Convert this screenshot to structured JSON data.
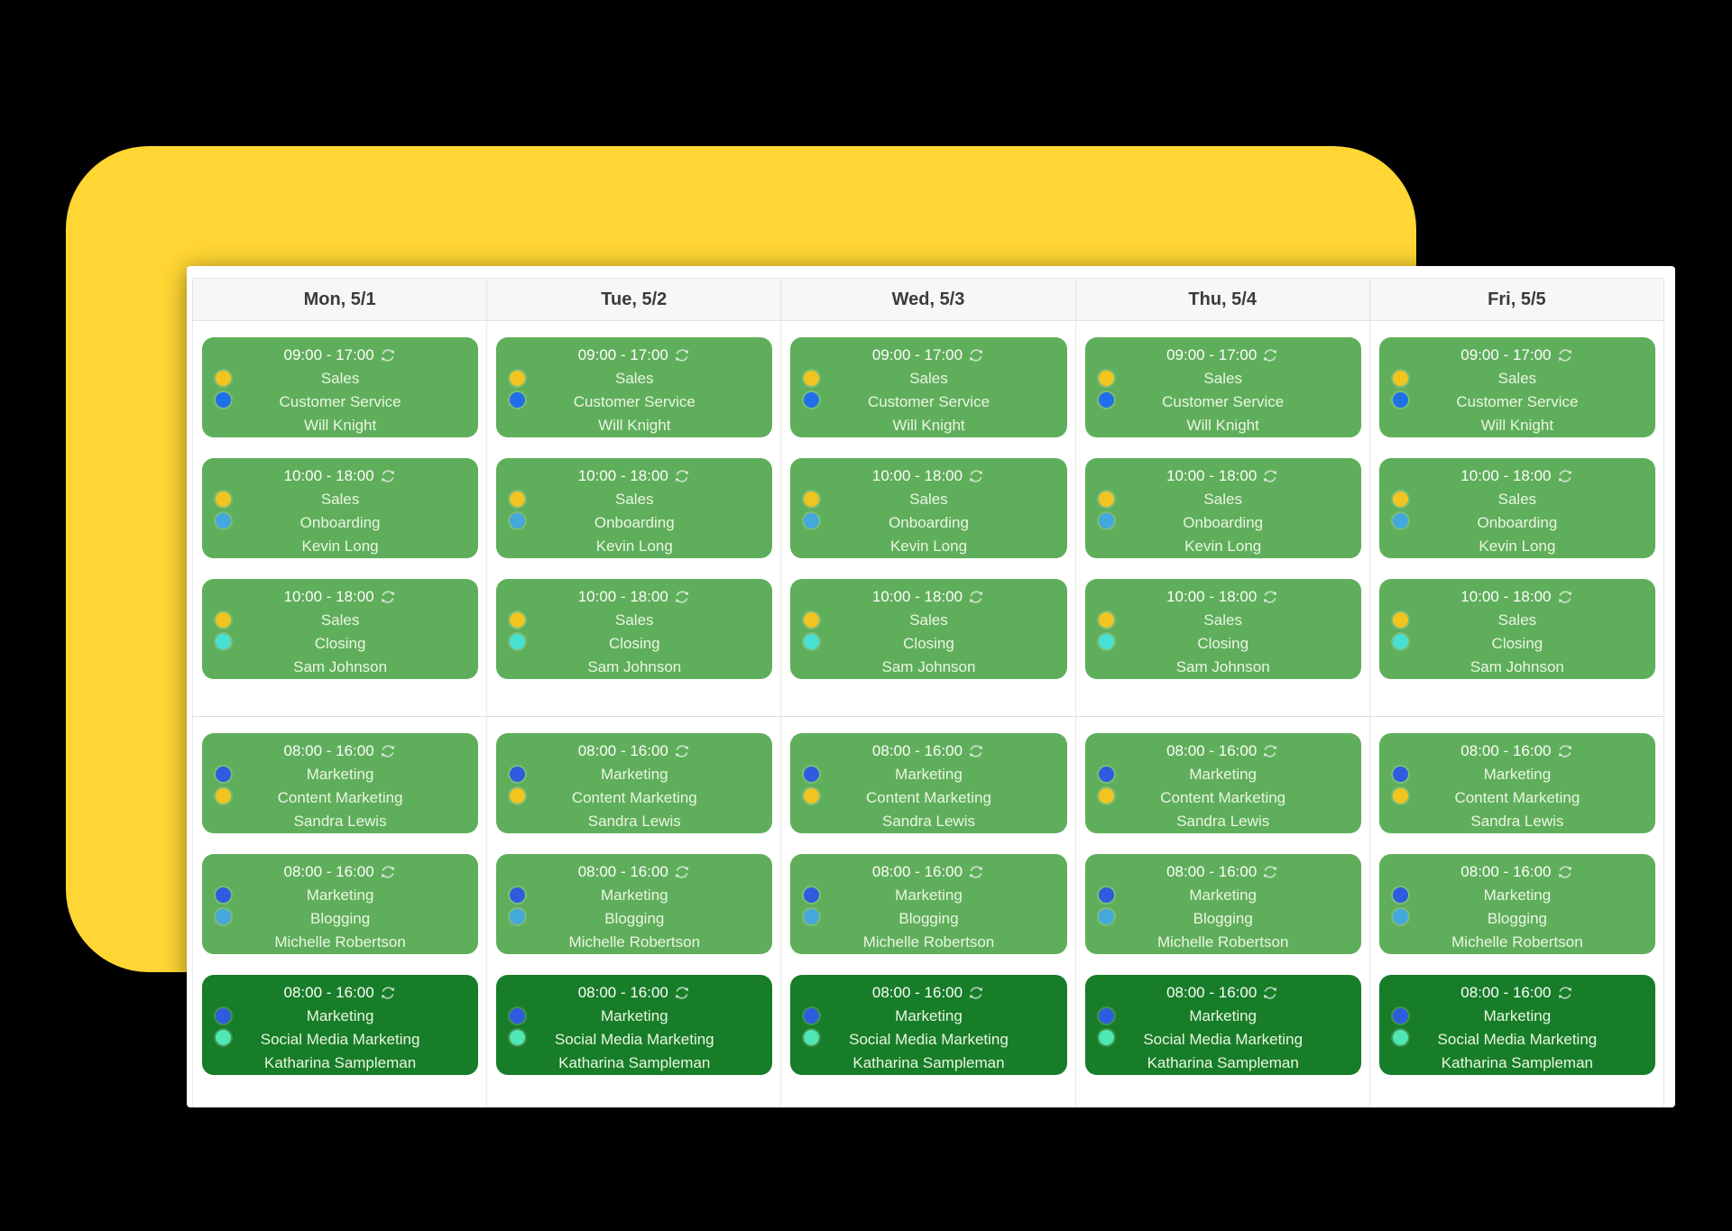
{
  "page": {
    "background": "#000000"
  },
  "decor": {
    "yellow_card_color": "#ffd633"
  },
  "calendar": {
    "day_headers": [
      "Mon, 5/1",
      "Tue, 5/2",
      "Wed, 5/3",
      "Thu, 5/4",
      "Fri, 5/5"
    ],
    "card_colors": {
      "green": "#5fae5b",
      "dark-green": "#177d28"
    },
    "dot_colors": {
      "yellow": "#f2c41f",
      "blue": "#1f70e8",
      "royal-blue": "#2e5cdf",
      "light-blue": "#44a8dc",
      "turquoise": "#48e0d2",
      "mint": "#4fe7b5"
    },
    "groups": [
      {
        "name": "sales-shifts",
        "events": [
          {
            "time": "09:00 - 17:00",
            "recurring": true,
            "department": "Sales",
            "role": "Customer Service",
            "person": "Will Knight",
            "dots": [
              "yellow",
              "blue"
            ],
            "variant": "green"
          },
          {
            "time": "10:00 - 18:00",
            "recurring": true,
            "department": "Sales",
            "role": "Onboarding",
            "person": "Kevin Long",
            "dots": [
              "yellow",
              "light-blue"
            ],
            "variant": "green"
          },
          {
            "time": "10:00 - 18:00",
            "recurring": true,
            "department": "Sales",
            "role": "Closing",
            "person": "Sam Johnson",
            "dots": [
              "yellow",
              "turquoise"
            ],
            "variant": "green"
          }
        ]
      },
      {
        "name": "marketing-shifts",
        "events": [
          {
            "time": "08:00 - 16:00",
            "recurring": true,
            "department": "Marketing",
            "role": "Content Marketing",
            "person": "Sandra Lewis",
            "dots": [
              "royal-blue",
              "yellow"
            ],
            "variant": "green"
          },
          {
            "time": "08:00 - 16:00",
            "recurring": true,
            "department": "Marketing",
            "role": "Blogging",
            "person": "Michelle Robertson",
            "dots": [
              "royal-blue",
              "light-blue"
            ],
            "variant": "green"
          },
          {
            "time": "08:00 - 16:00",
            "recurring": true,
            "department": "Marketing",
            "role": "Social Media Marketing",
            "person": "Katharina Sampleman",
            "dots": [
              "royal-blue",
              "mint"
            ],
            "variant": "dark-green"
          }
        ]
      }
    ]
  }
}
